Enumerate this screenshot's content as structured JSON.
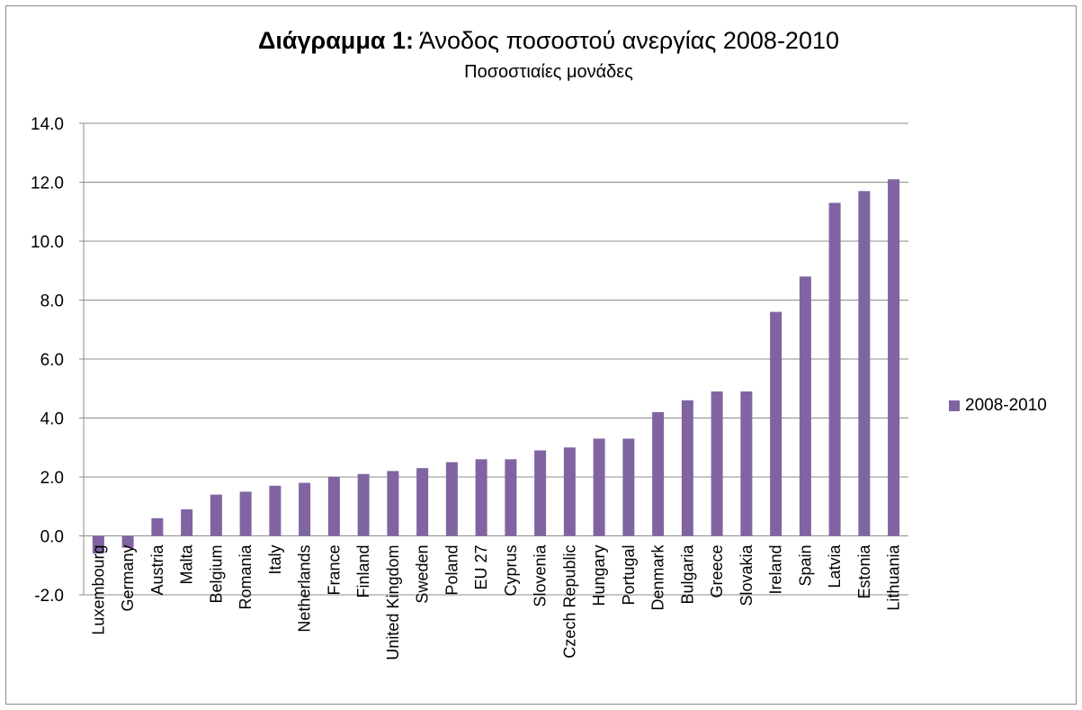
{
  "chart_data": {
    "type": "bar",
    "title_bold": "Διάγραμμα 1:",
    "title_rest": " Άνοδος ποσοστού ανεργίας 2008-2010",
    "subtitle": "Ποσοστιαίες μονάδες",
    "categories": [
      "Luxembourg",
      "Germany",
      "Austria",
      "Malta",
      "Belgium",
      "Romania",
      "Italy",
      "Netherlands",
      "France",
      "Finland",
      "United Kingdom",
      "Sweden",
      "Poland",
      "EU 27",
      "Cyprus",
      "Slovenia",
      "Czech Republic",
      "Hungary",
      "Portugal",
      "Denmark",
      "Bulgaria",
      "Greece",
      "Slovakia",
      "Ireland",
      "Spain",
      "Latvia",
      "Estonia",
      "Lithuania"
    ],
    "series": [
      {
        "name": "2008-2010",
        "color": "#8064a2",
        "values": [
          -0.6,
          -0.4,
          0.6,
          0.9,
          1.4,
          1.5,
          1.7,
          1.8,
          2.0,
          2.1,
          2.2,
          2.3,
          2.5,
          2.6,
          2.6,
          2.9,
          3.0,
          3.3,
          3.3,
          4.2,
          4.6,
          4.9,
          4.9,
          7.6,
          8.8,
          11.3,
          11.7,
          12.1
        ]
      }
    ],
    "ylim": [
      -2.0,
      14.0
    ],
    "yticks": [
      "-2.0",
      "0.0",
      "2.0",
      "4.0",
      "6.0",
      "8.0",
      "10.0",
      "12.0",
      "14.0"
    ],
    "grid": true,
    "legend_position": "right"
  }
}
